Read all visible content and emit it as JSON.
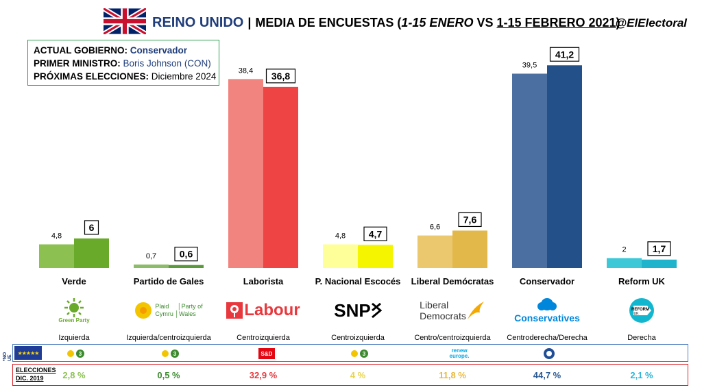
{
  "header": {
    "country": "REINO UNIDO",
    "separator": "|",
    "title_prefix": "MEDIA DE ENCUESTAS (",
    "period_1": "1-15 ENERO",
    "vs": " VS ",
    "period_2": "1-15 FEBRERO 2021",
    "title_suffix": ")",
    "handle": "@ElElectoral"
  },
  "info": {
    "gov_label": "ACTUAL GOBIERNO:",
    "gov_value": "Conservador",
    "pm_label": "PRIMER MINISTRO:",
    "pm_value": "Boris Johnson (CON)",
    "elections_label": "PRÓXIMAS ELECCIONES:",
    "elections_value": "Diciembre 2024"
  },
  "chart_data": {
    "type": "bar",
    "title": "MEDIA DE ENCUESTAS (1-15 ENERO VS 1-15 FEBRERO 2021)",
    "categories": [
      "Verde",
      "Partido de Gales",
      "Laborista",
      "P. Nacional Escocés",
      "Liberal Demócratas",
      "Conservador",
      "Reform UK"
    ],
    "series": [
      {
        "name": "1-15 ENERO",
        "values": [
          4.8,
          0.7,
          38.4,
          4.8,
          6.6,
          39.5,
          2
        ]
      },
      {
        "name": "1-15 FEBRERO 2021",
        "values": [
          6,
          0.6,
          36.8,
          4.7,
          7.6,
          41.2,
          1.7
        ]
      }
    ],
    "labels_jan": [
      "4,8",
      "0,7",
      "38,4",
      "4,8",
      "6,6",
      "39,5",
      "2"
    ],
    "labels_feb": [
      "6",
      "0,6",
      "36,8",
      "4,7",
      "7,6",
      "41,2",
      "1,7"
    ],
    "colors_jan": [
      "#8cc152",
      "#8cbc6a",
      "#f28480",
      "#ffff99",
      "#ebc86e",
      "#4a6fa0",
      "#3dc8d8"
    ],
    "colors_feb": [
      "#6aaa2a",
      "#5b9a3c",
      "#ef4444",
      "#f5f500",
      "#e3b84a",
      "#24508a",
      "#20b4cc"
    ],
    "ylim": [
      0,
      45
    ],
    "grid": false,
    "legend": "none"
  },
  "parties": [
    {
      "name": "Verde",
      "logo": "Green Party",
      "ideology": "Izquierda",
      "eu_group": "Greens/EFA",
      "elec_2019": "2,8 %",
      "color": "#6aaa2a"
    },
    {
      "name": "Partido de Gales",
      "logo_1": "Plaid",
      "logo_2": "Cymru",
      "logo_3": "Party of",
      "logo_4": "Wales",
      "ideology": "Izquierda/centroizquierda",
      "eu_group": "Greens/EFA",
      "elec_2019": "0,5 %",
      "color": "#3c8a2e"
    },
    {
      "name": "Laborista",
      "logo": "Labour",
      "ideology": "Centroizquierda",
      "eu_group": "S&D",
      "elec_2019": "32,9 %",
      "color": "#e8383d"
    },
    {
      "name": "P. Nacional Escocés",
      "logo": "SNP",
      "ideology": "Centroizquierda",
      "eu_group": "Greens/EFA",
      "elec_2019": "4 %",
      "color": "#e8d44a"
    },
    {
      "name": "Liberal Demócratas",
      "logo_1": "Liberal",
      "logo_2": "Democrats",
      "ideology": "Centro/centroizquierda",
      "eu_group_1": "renew",
      "eu_group_2": "europe.",
      "elec_2019": "11,8 %",
      "color": "#e8b83a"
    },
    {
      "name": "Conservador",
      "logo": "Conservatives",
      "ideology": "Centroderecha/Derecha",
      "eu_group": "ECR",
      "elec_2019": "44,7 %",
      "color": "#2a5a94"
    },
    {
      "name": "Reform UK",
      "logo_1": "REFORM",
      "logo_2": "UK",
      "ideology": "Derecha",
      "eu_group": "",
      "elec_2019": "2,1 %",
      "color": "#2ab4d8"
    }
  ],
  "footer": {
    "no_ue": "*NO UE",
    "elections_label_1": "ELECCIONES",
    "elections_label_2": "DIC. 2019",
    "greens_badge": "3"
  }
}
